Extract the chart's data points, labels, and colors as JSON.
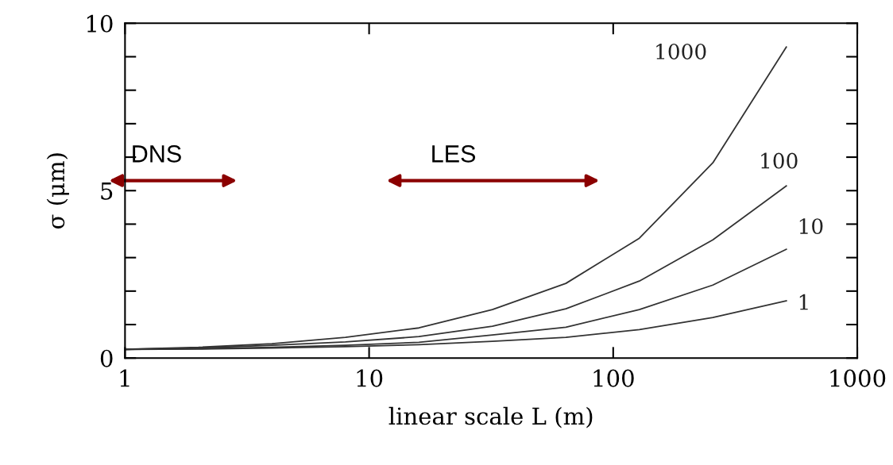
{
  "chart_data": {
    "type": "line",
    "xlabel": "linear scale L (m)",
    "ylabel": "σ (μm)",
    "log": "x",
    "xlim": [
      1,
      1000
    ],
    "xticks": [
      1,
      10,
      100,
      1000
    ],
    "ylim": [
      0,
      10
    ],
    "yticks": [
      0,
      {
        "value": 1,
        "label": null
      },
      {
        "value": 2,
        "label": null
      },
      {
        "value": 3,
        "label": null
      },
      {
        "value": 4,
        "label": null
      },
      5,
      {
        "value": 6,
        "label": null
      },
      {
        "value": 7,
        "label": null
      },
      {
        "value": 8,
        "label": null
      },
      {
        "value": 9,
        "label": null
      },
      10
    ],
    "grid": false,
    "marker": "none",
    "line_style": "solid",
    "x": [
      1,
      2,
      4,
      8,
      16,
      32,
      64,
      128,
      256,
      512
    ],
    "series": [
      {
        "name": "1000",
        "color": "#333333",
        "values": [
          0.26,
          0.32,
          0.43,
          0.62,
          0.9,
          1.45,
          2.23,
          3.58,
          5.83,
          9.29
        ]
      },
      {
        "name": "100",
        "color": "#333333",
        "values": [
          0.26,
          0.3,
          0.38,
          0.48,
          0.64,
          0.95,
          1.47,
          2.3,
          3.53,
          5.14
        ]
      },
      {
        "name": "10",
        "color": "#333333",
        "values": [
          0.26,
          0.28,
          0.32,
          0.38,
          0.47,
          0.69,
          0.92,
          1.45,
          2.18,
          3.25
        ]
      },
      {
        "name": "1",
        "color": "#333333",
        "values": [
          0.26,
          0.27,
          0.3,
          0.34,
          0.4,
          0.5,
          0.62,
          0.85,
          1.21,
          1.71
        ]
      }
    ],
    "annotations": [
      "DNS",
      "LES"
    ]
  }
}
